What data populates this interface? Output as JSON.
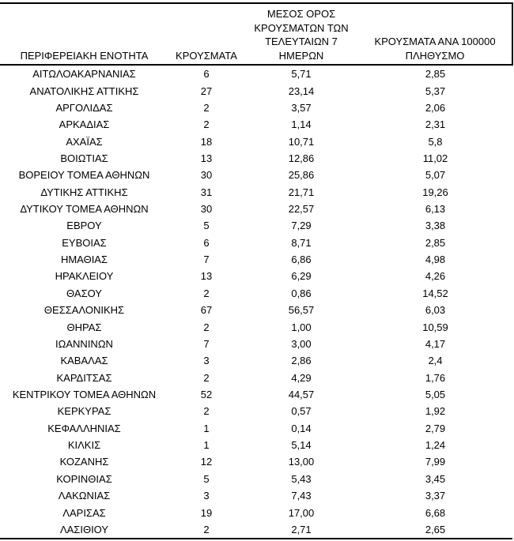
{
  "colors": {
    "background": "#ffffff",
    "text": "#000000",
    "border": "#000000"
  },
  "table": {
    "columns": [
      {
        "label": "ΠΕΡΙΦΕΡΕΙΑΚΗ ΕΝΟΤΗΤΑ"
      },
      {
        "label": "ΚΡΟΥΣΜΑΤΑ"
      },
      {
        "label": "ΜΕΣΟΣ ΟΡΟΣ\nΚΡΟΥΣΜΑΤΩΝ ΤΩΝ\nΤΕΛΕΥΤΑΙΩΝ 7\nΗΜΕΡΩΝ"
      },
      {
        "label": "ΚΡΟΥΣΜΑΤΑ ΑΝΑ 100000\nΠΛΗΘΥΣΜΟ"
      }
    ],
    "rows": [
      [
        "ΑΙΤΩΛΟΑΚΑΡΝΑΝΙΑΣ",
        "6",
        "5,71",
        "2,85"
      ],
      [
        "ΑΝΑΤΟΛΙΚΗΣ ΑΤΤΙΚΗΣ",
        "27",
        "23,14",
        "5,37"
      ],
      [
        "ΑΡΓΟΛΙΔΑΣ",
        "2",
        "3,57",
        "2,06"
      ],
      [
        "ΑΡΚΑΔΙΑΣ",
        "2",
        "1,14",
        "2,31"
      ],
      [
        "ΑΧΑΪΑΣ",
        "18",
        "10,71",
        "5,8"
      ],
      [
        "ΒΟΙΩΤΙΑΣ",
        "13",
        "12,86",
        "11,02"
      ],
      [
        "ΒΟΡΕΙΟΥ ΤΟΜΕΑ ΑΘΗΝΩΝ",
        "30",
        "25,86",
        "5,07"
      ],
      [
        "ΔΥΤΙΚΗΣ ΑΤΤΙΚΗΣ",
        "31",
        "21,71",
        "19,26"
      ],
      [
        "ΔΥΤΙΚΟΥ ΤΟΜΕΑ ΑΘΗΝΩΝ",
        "30",
        "22,57",
        "6,13"
      ],
      [
        "ΕΒΡΟΥ",
        "5",
        "7,29",
        "3,38"
      ],
      [
        "ΕΥΒΟΙΑΣ",
        "6",
        "8,71",
        "2,85"
      ],
      [
        "ΗΜΑΘΙΑΣ",
        "7",
        "6,86",
        "4,98"
      ],
      [
        "ΗΡΑΚΛΕΙΟΥ",
        "13",
        "6,29",
        "4,26"
      ],
      [
        "ΘΑΣΟΥ",
        "2",
        "0,86",
        "14,52"
      ],
      [
        "ΘΕΣΣΑΛΟΝΙΚΗΣ",
        "67",
        "56,57",
        "6,03"
      ],
      [
        "ΘΗΡΑΣ",
        "2",
        "1,00",
        "10,59"
      ],
      [
        "ΙΩΑΝΝΙΝΩΝ",
        "7",
        "3,00",
        "4,17"
      ],
      [
        "ΚΑΒΑΛΑΣ",
        "3",
        "2,86",
        "2,4"
      ],
      [
        "ΚΑΡΔΙΤΣΑΣ",
        "2",
        "4,29",
        "1,76"
      ],
      [
        "ΚΕΝΤΡΙΚΟΥ ΤΟΜΕΑ ΑΘΗΝΩΝ",
        "52",
        "44,57",
        "5,05"
      ],
      [
        "ΚΕΡΚΥΡΑΣ",
        "2",
        "0,57",
        "1,92"
      ],
      [
        "ΚΕΦΑΛΛΗΝΙΑΣ",
        "1",
        "0,14",
        "2,79"
      ],
      [
        "ΚΙΛΚΙΣ",
        "1",
        "5,14",
        "1,24"
      ],
      [
        "ΚΟΖΑΝΗΣ",
        "12",
        "13,00",
        "7,99"
      ],
      [
        "ΚΟΡΙΝΘΙΑΣ",
        "5",
        "5,43",
        "3,45"
      ],
      [
        "ΛΑΚΩΝΙΑΣ",
        "3",
        "7,43",
        "3,37"
      ],
      [
        "ΛΑΡΙΣΑΣ",
        "19",
        "17,00",
        "6,68"
      ],
      [
        "ΛΑΣΙΘΙΟΥ",
        "2",
        "2,71",
        "2,65"
      ]
    ]
  }
}
